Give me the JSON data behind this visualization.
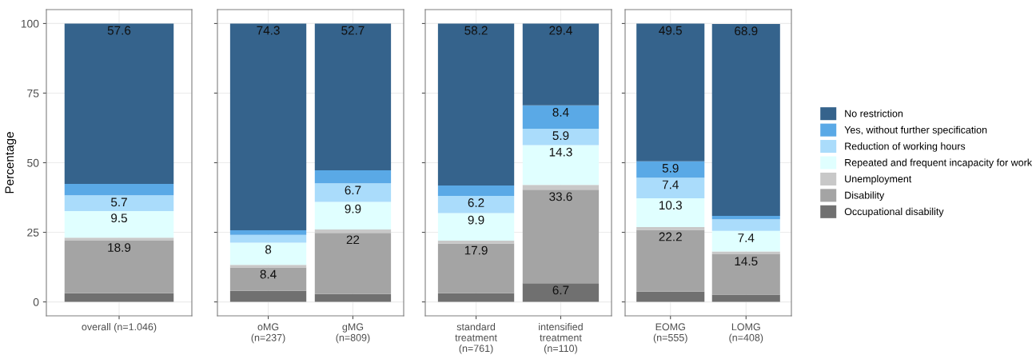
{
  "chart_data": [
    {
      "type": "bar",
      "stacked": true,
      "ylabel": "Percentage",
      "categories": [
        "overall (n=1.046)"
      ],
      "ylim": [
        -5,
        105
      ],
      "yticks": [
        0,
        25,
        50,
        75,
        100
      ],
      "grid": true,
      "legend": false,
      "series": [
        {
          "color": "#707070",
          "values": [
            3.1
          ],
          "value_labels": [
            null
          ]
        },
        {
          "color": "#a4a4a4",
          "values": [
            18.9
          ],
          "value_labels": [
            "18.9"
          ]
        },
        {
          "color": "#c8c8c8",
          "values": [
            1.1
          ],
          "value_labels": [
            null
          ]
        },
        {
          "color": "#e0ffff",
          "values": [
            9.5
          ],
          "value_labels": [
            "9.5"
          ]
        },
        {
          "color": "#aadcfb",
          "values": [
            5.7
          ],
          "value_labels": [
            "5.7"
          ]
        },
        {
          "color": "#5aa9e6",
          "values": [
            4.1
          ],
          "value_labels": [
            null
          ]
        },
        {
          "color": "#35638c",
          "values": [
            57.6
          ],
          "value_labels": [
            "57.6"
          ]
        }
      ]
    },
    {
      "type": "bar",
      "stacked": true,
      "categories": [
        "oMG\n(n=237)",
        "gMG\n(n=809)"
      ],
      "ylim": [
        -5,
        105
      ],
      "yticks": [
        0,
        25,
        50,
        75,
        100
      ],
      "tick_labels": "x",
      "grid": true,
      "legend": false,
      "series": [
        {
          "color": "#707070",
          "values": [
            4.0,
            2.8
          ],
          "value_labels": [
            null,
            null
          ]
        },
        {
          "color": "#a4a4a4",
          "values": [
            8.4,
            22
          ],
          "value_labels": [
            "8.4",
            "22"
          ]
        },
        {
          "color": "#c8c8c8",
          "values": [
            0.9,
            1.2
          ],
          "value_labels": [
            null,
            null
          ]
        },
        {
          "color": "#e0ffff",
          "values": [
            8,
            9.9
          ],
          "value_labels": [
            "8",
            "9.9"
          ]
        },
        {
          "color": "#aadcfb",
          "values": [
            2.8,
            6.7
          ],
          "value_labels": [
            null,
            "6.7"
          ]
        },
        {
          "color": "#5aa9e6",
          "values": [
            1.6,
            4.7
          ],
          "value_labels": [
            null,
            null
          ]
        },
        {
          "color": "#35638c",
          "values": [
            74.3,
            52.7
          ],
          "value_labels": [
            "74.3",
            "52.7"
          ]
        }
      ]
    },
    {
      "type": "bar",
      "stacked": true,
      "categories": [
        "standard\ntreatment\n(n=761)",
        "intensified\ntreatment\n(n=110)"
      ],
      "ylim": [
        -5,
        105
      ],
      "yticks": [
        0,
        25,
        50,
        75,
        100
      ],
      "tick_labels": "x",
      "grid": true,
      "legend": false,
      "series": [
        {
          "color": "#707070",
          "values": [
            3.1,
            6.7
          ],
          "value_labels": [
            null,
            "6.7"
          ]
        },
        {
          "color": "#a4a4a4",
          "values": [
            17.9,
            33.6
          ],
          "value_labels": [
            "17.9",
            "33.6"
          ]
        },
        {
          "color": "#c8c8c8",
          "values": [
            1.0,
            1.7
          ],
          "value_labels": [
            null,
            null
          ]
        },
        {
          "color": "#e0ffff",
          "values": [
            9.9,
            14.3
          ],
          "value_labels": [
            "9.9",
            "14.3"
          ]
        },
        {
          "color": "#aadcfb",
          "values": [
            6.2,
            5.9
          ],
          "value_labels": [
            "6.2",
            "5.9"
          ]
        },
        {
          "color": "#5aa9e6",
          "values": [
            3.7,
            8.4
          ],
          "value_labels": [
            null,
            "8.4"
          ]
        },
        {
          "color": "#35638c",
          "values": [
            58.2,
            29.4
          ],
          "value_labels": [
            "58.2",
            "29.4"
          ]
        }
      ]
    },
    {
      "type": "bar",
      "stacked": true,
      "categories": [
        "EOMG\n(n=555)",
        "LOMG\n(n=408)"
      ],
      "ylim": [
        -5,
        105
      ],
      "yticks": [
        0,
        25,
        50,
        75,
        100
      ],
      "tick_labels": "x",
      "grid": true,
      "legend": "right",
      "series": [
        {
          "name": "Occupational disability",
          "color": "#707070",
          "values": [
            3.7,
            2.6
          ],
          "value_labels": [
            null,
            null
          ]
        },
        {
          "name": "Disability",
          "color": "#a4a4a4",
          "values": [
            22.2,
            14.5
          ],
          "value_labels": [
            "22.2",
            "14.5"
          ]
        },
        {
          "name": "Unemployment",
          "color": "#c8c8c8",
          "values": [
            1.0,
            1.0
          ],
          "value_labels": [
            null,
            null
          ]
        },
        {
          "name": "Repeated and frequent incapacity for work",
          "color": "#e0ffff",
          "values": [
            10.3,
            7.4
          ],
          "value_labels": [
            "10.3",
            "7.4"
          ]
        },
        {
          "name": "Reduction of working hours",
          "color": "#aadcfb",
          "values": [
            7.4,
            4.2
          ],
          "value_labels": [
            "7.4",
            null
          ]
        },
        {
          "name": "Yes, without further specification",
          "color": "#5aa9e6",
          "values": [
            5.9,
            1.2
          ],
          "value_labels": [
            "5.9",
            null
          ]
        },
        {
          "name": "No restriction",
          "color": "#35638c",
          "values": [
            49.5,
            68.9
          ],
          "value_labels": [
            "49.5",
            "68.9"
          ]
        }
      ]
    }
  ]
}
